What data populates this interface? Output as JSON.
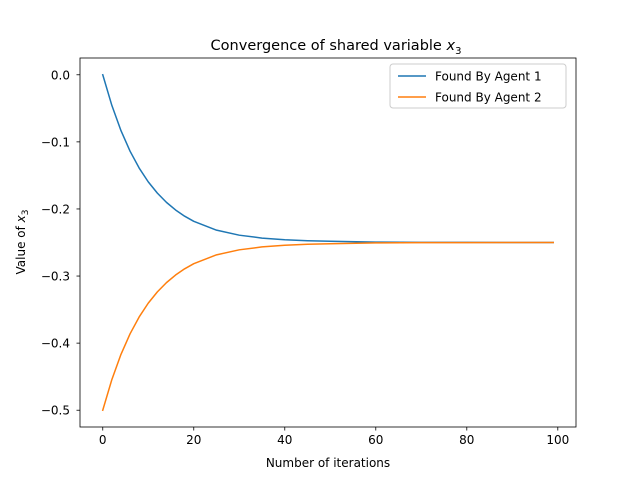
{
  "chart_data": {
    "type": "line",
    "title": "Convergence of shared variable ",
    "title_math_var": "x",
    "title_math_sub": "3",
    "xlabel": "Number of iterations",
    "ylabel": "Value of ",
    "ylabel_math_var": "x",
    "ylabel_math_sub": "3",
    "xlim": [
      -5,
      104
    ],
    "ylim": [
      -0.525,
      0.025
    ],
    "x_ticks": [
      {
        "value": 0,
        "label": "0"
      },
      {
        "value": 20,
        "label": "20"
      },
      {
        "value": 40,
        "label": "40"
      },
      {
        "value": 60,
        "label": "60"
      },
      {
        "value": 80,
        "label": "80"
      },
      {
        "value": 100,
        "label": "100"
      }
    ],
    "y_ticks": [
      {
        "value": 0.0,
        "label": "0.0"
      },
      {
        "value": -0.1,
        "label": "−0.1"
      },
      {
        "value": -0.2,
        "label": "−0.2"
      },
      {
        "value": -0.3,
        "label": "−0.3"
      },
      {
        "value": -0.4,
        "label": "−0.4"
      },
      {
        "value": -0.5,
        "label": "−0.5"
      }
    ],
    "grid": false,
    "legend_position": "top-right",
    "series": [
      {
        "name": "Found By Agent 1",
        "color": "#1f77b4",
        "x": [
          0,
          2,
          4,
          6,
          8,
          10,
          12,
          14,
          16,
          18,
          20,
          25,
          30,
          35,
          40,
          45,
          50,
          60,
          70,
          80,
          90,
          99
        ],
        "y": [
          0.0,
          -0.0457,
          -0.0832,
          -0.1139,
          -0.139,
          -0.1596,
          -0.1764,
          -0.1902,
          -0.2015,
          -0.2108,
          -0.2184,
          -0.2316,
          -0.2391,
          -0.2434,
          -0.2459,
          -0.2474,
          -0.2482,
          -0.2494,
          -0.2498,
          -0.2499,
          -0.25,
          -0.25
        ]
      },
      {
        "name": "Found By Agent 2",
        "color": "#ff7f0e",
        "x": [
          0,
          2,
          4,
          6,
          8,
          10,
          12,
          14,
          16,
          18,
          20,
          25,
          30,
          35,
          40,
          45,
          50,
          60,
          70,
          80,
          90,
          99
        ],
        "y": [
          -0.5,
          -0.4543,
          -0.4168,
          -0.3861,
          -0.361,
          -0.3404,
          -0.3236,
          -0.3098,
          -0.2985,
          -0.2892,
          -0.2816,
          -0.2684,
          -0.2609,
          -0.2566,
          -0.2541,
          -0.2526,
          -0.2518,
          -0.2506,
          -0.2502,
          -0.2501,
          -0.25,
          -0.25
        ]
      }
    ]
  }
}
